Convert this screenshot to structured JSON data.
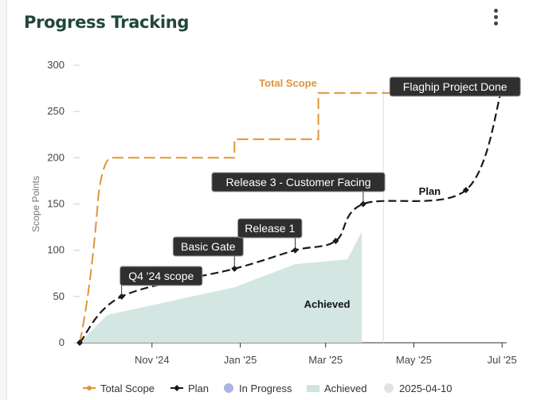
{
  "header": {
    "title": "Progress Tracking"
  },
  "chart_data": {
    "type": "line",
    "ylabel": "Scope Points",
    "ylim": [
      0,
      300
    ],
    "yticks": [
      0,
      50,
      100,
      150,
      200,
      250,
      300
    ],
    "xlim": [
      "2024-09-12",
      "2025-07-02"
    ],
    "xticks": [
      {
        "date": "2024-11-01",
        "label": "Nov '24"
      },
      {
        "date": "2025-01-01",
        "label": "Jan '25"
      },
      {
        "date": "2025-03-01",
        "label": "Mar '25"
      },
      {
        "date": "2025-05-01",
        "label": "May '25"
      },
      {
        "date": "2025-07-01",
        "label": "Jul '25"
      }
    ],
    "today": "2025-04-10",
    "series": [
      {
        "name": "Total Scope",
        "color": "#e0953a",
        "label": "Total Scope",
        "points": [
          [
            "2024-09-12",
            0
          ],
          [
            "2024-09-25",
            160
          ],
          [
            "2024-10-03",
            200
          ],
          [
            "2024-12-28",
            200
          ],
          [
            "2024-12-28",
            220
          ],
          [
            "2025-02-24",
            220
          ],
          [
            "2025-02-24",
            270
          ],
          [
            "2025-07-01",
            270
          ]
        ]
      },
      {
        "name": "Plan",
        "color": "#1a1a1a",
        "label": "Plan",
        "points": [
          [
            "2024-09-12",
            0
          ],
          [
            "2024-10-11",
            50
          ],
          [
            "2024-12-28",
            80
          ],
          [
            "2025-02-08",
            100
          ],
          [
            "2025-03-08",
            110
          ],
          [
            "2025-03-27",
            150
          ],
          [
            "2025-06-06",
            165
          ],
          [
            "2025-07-01",
            275
          ]
        ]
      },
      {
        "name": "Achieved",
        "color": "#cfe3df",
        "label": "Achieved",
        "points": [
          [
            "2024-09-12",
            0
          ],
          [
            "2024-10-01",
            30
          ],
          [
            "2024-12-28",
            60
          ],
          [
            "2025-02-08",
            85
          ],
          [
            "2025-03-16",
            90
          ],
          [
            "2025-03-26",
            120
          ]
        ]
      }
    ],
    "callouts": [
      {
        "text": "Q4 '24 scope",
        "date": "2024-10-11",
        "value": 50
      },
      {
        "text": "Basic Gate",
        "date": "2024-12-28",
        "value": 80
      },
      {
        "text": "Release 1",
        "date": "2025-02-08",
        "value": 100
      },
      {
        "text": "Release 3 - Customer Facing",
        "date": "2025-03-27",
        "value": 150
      },
      {
        "text": "Flaghip Project Done",
        "date": "2025-07-01",
        "value": 275
      }
    ],
    "legend": [
      {
        "label": "Total Scope",
        "color": "#e0953a",
        "kind": "line-dot"
      },
      {
        "label": "Plan",
        "color": "#1a1a1a",
        "kind": "line-diamond"
      },
      {
        "label": "In Progress",
        "color": "#aab4e0",
        "kind": "dot"
      },
      {
        "label": "Achieved",
        "color": "#cfe3df",
        "kind": "area"
      },
      {
        "label": "2025-04-10",
        "color": "#e2e2e2",
        "kind": "dot"
      }
    ]
  }
}
